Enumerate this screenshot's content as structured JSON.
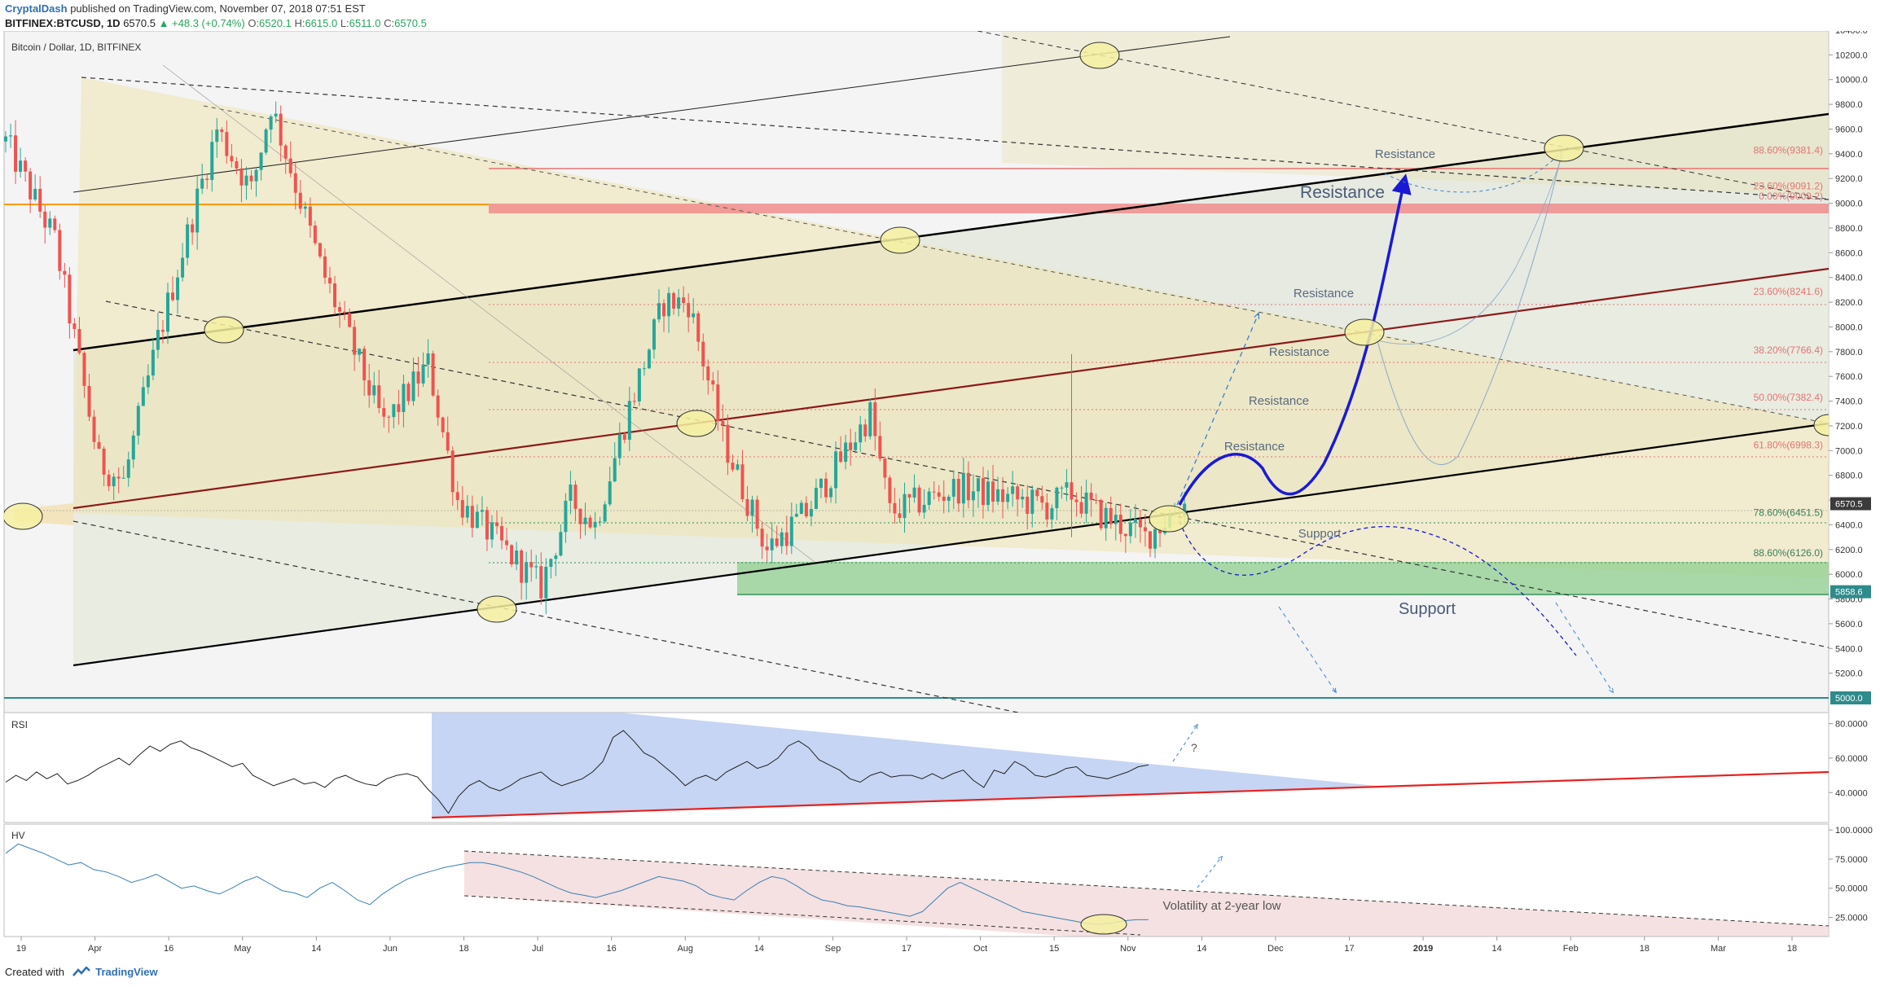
{
  "header": {
    "author": "CryptalDash",
    "published_text": "published on TradingView.com, November 07, 2018 07:51 EST",
    "symbol": "BITFINEX:BTCUSD, 1D",
    "price": "6570.5",
    "change": "▲ +48.3 (+0.74%)",
    "o_label": "O:",
    "o_val": "6520.1",
    "h_label": "H:",
    "h_val": "6615.0",
    "l_label": "L:",
    "l_val": "6511.0",
    "c_label": "C:",
    "c_val": "6570.5"
  },
  "footer": {
    "created_with": "Created with",
    "brand": "TradingView"
  },
  "colors": {
    "up": "#26a69a",
    "down": "#ef5350",
    "fib_line": "#e57373",
    "support_zone": "#8fcf8f",
    "resistance_zone": "#f08080",
    "projection": "#1a1ad4",
    "rsi_fill": "#b8cbf0",
    "hv_fill": "#f2d9d9"
  },
  "chart_data": [
    {
      "type": "candlestick",
      "title": "Bitcoin / Dollar, 1D, BITFINEX",
      "y_range": [
        5000,
        10400
      ],
      "y_ticks": [
        5200,
        5400,
        5600,
        5800,
        6000,
        6200,
        6400,
        6600,
        6800,
        7000,
        7200,
        7400,
        7600,
        7800,
        8000,
        8200,
        8400,
        8600,
        8800,
        9000,
        9200,
        9400,
        9600,
        9800,
        10000,
        10200,
        10400
      ],
      "price_tags": [
        {
          "label": "6570.5",
          "value": 6570.5,
          "style": "dark"
        },
        {
          "label": "5858.6",
          "value": 5858.6,
          "style": "teal"
        },
        {
          "label": "5000.0",
          "value": 5000.0,
          "style": "teal"
        }
      ],
      "x_axis_labels": [
        "19",
        "Apr",
        "16",
        "May",
        "14",
        "Jun",
        "18",
        "Jul",
        "16",
        "Aug",
        "14",
        "Sep",
        "17",
        "Oct",
        "15",
        "Nov",
        "14",
        "Dec",
        "17",
        "2019",
        "14",
        "Feb",
        "18",
        "Mar",
        "18"
      ],
      "series_anchors": [
        {
          "date": "2018-03-12",
          "close": 9500
        },
        {
          "date": "2018-03-22",
          "close": 8700
        },
        {
          "date": "2018-03-31",
          "close": 6900
        },
        {
          "date": "2018-04-05",
          "close": 6750
        },
        {
          "date": "2018-04-12",
          "close": 7900
        },
        {
          "date": "2018-04-24",
          "close": 9600
        },
        {
          "date": "2018-05-01",
          "close": 9100
        },
        {
          "date": "2018-05-05",
          "close": 9800
        },
        {
          "date": "2018-05-15",
          "close": 8500
        },
        {
          "date": "2018-05-28",
          "close": 7200
        },
        {
          "date": "2018-06-06",
          "close": 7700
        },
        {
          "date": "2018-06-12",
          "close": 6600
        },
        {
          "date": "2018-06-24",
          "close": 6100
        },
        {
          "date": "2018-06-29",
          "close": 5900
        },
        {
          "date": "2018-07-05",
          "close": 6600
        },
        {
          "date": "2018-07-10",
          "close": 6400
        },
        {
          "date": "2018-07-17",
          "close": 7350
        },
        {
          "date": "2018-07-24",
          "close": 8200
        },
        {
          "date": "2018-07-29",
          "close": 8200
        },
        {
          "date": "2018-08-05",
          "close": 7100
        },
        {
          "date": "2018-08-14",
          "close": 6200
        },
        {
          "date": "2018-08-22",
          "close": 6500
        },
        {
          "date": "2018-09-04",
          "close": 7300
        },
        {
          "date": "2018-09-08",
          "close": 6500
        },
        {
          "date": "2018-09-22",
          "close": 6700
        },
        {
          "date": "2018-10-10",
          "close": 6550
        },
        {
          "date": "2018-10-15",
          "close": 6650
        },
        {
          "date": "2018-10-20",
          "close": 6500
        },
        {
          "date": "2018-10-30",
          "close": 6300
        },
        {
          "date": "2018-11-07",
          "close": 6570.5
        }
      ],
      "fib_levels": [
        {
          "label": "0.00%(9009.2)",
          "value": 9009.2
        },
        {
          "label": "23.60%(9091.2)",
          "value": 9091.2
        },
        {
          "label": "88.60%(9381.4)",
          "value": 9381.4
        },
        {
          "label": "23.60%(8241.6)",
          "value": 8241.6
        },
        {
          "label": "38.20%(7766.4)",
          "value": 7766.4
        },
        {
          "label": "50.00%(7382.4)",
          "value": 7382.4
        },
        {
          "label": "61.80%(6998.3)",
          "value": 6998.3
        },
        {
          "label": "78.60%(6451.5)",
          "value": 6451.5
        },
        {
          "label": "88.60%(6126.0)",
          "value": 6126.0
        }
      ],
      "annotations": [
        "Resistance",
        "Resistance",
        "Resistance",
        "Resistance",
        "Resistance",
        "Resistance",
        "Support",
        "Support"
      ]
    },
    {
      "type": "line",
      "title": "RSI",
      "y_range": [
        25,
        85
      ],
      "y_ticks": [
        40,
        60,
        80
      ],
      "y_tick_labels": [
        "40.0000",
        "60.0000",
        "80.0000"
      ],
      "series": [
        {
          "values": [
            46,
            50,
            47,
            52,
            48,
            51,
            45,
            47,
            50,
            54,
            57,
            60,
            56,
            62,
            67,
            64,
            68,
            70,
            66,
            64,
            61,
            58,
            55,
            57,
            50,
            47,
            44,
            46,
            48,
            45,
            46,
            43,
            48,
            50,
            47,
            45,
            44,
            48,
            50,
            51,
            49,
            42,
            36,
            28,
            38,
            44,
            47,
            43,
            41,
            44,
            48,
            50,
            52,
            47,
            44,
            46,
            48,
            52,
            58,
            72,
            76,
            70,
            63,
            60,
            55,
            50,
            44,
            48,
            50,
            47,
            52,
            55,
            58,
            54,
            56,
            60,
            67,
            70,
            66,
            59,
            56,
            53,
            48,
            46,
            50,
            52,
            49,
            50,
            50,
            48,
            51,
            48,
            51,
            53,
            47,
            43,
            53,
            51,
            58,
            55,
            50,
            49,
            51,
            54,
            55,
            50,
            49,
            48,
            50,
            52,
            55,
            56
          ]
        }
      ],
      "annotations": [
        "?"
      ]
    },
    {
      "type": "line",
      "title": "HV",
      "y_range": [
        10,
        105
      ],
      "y_ticks": [
        25,
        50,
        75,
        100
      ],
      "y_tick_labels": [
        "25.0000",
        "50.0000",
        "75.0000",
        "100.0000"
      ],
      "series": [
        {
          "values": [
            80,
            88,
            84,
            80,
            75,
            70,
            72,
            66,
            64,
            60,
            55,
            58,
            62,
            56,
            50,
            52,
            48,
            45,
            50,
            56,
            60,
            54,
            48,
            46,
            42,
            50,
            55,
            48,
            40,
            36,
            45,
            52,
            58,
            62,
            65,
            68,
            70,
            72,
            72,
            70,
            67,
            64,
            60,
            55,
            50,
            46,
            44,
            42,
            45,
            48,
            52,
            56,
            60,
            58,
            56,
            52,
            45,
            42,
            40,
            48,
            55,
            60,
            58,
            52,
            45,
            40,
            38,
            35,
            34,
            32,
            30,
            28,
            26,
            30,
            40,
            50,
            55,
            50,
            45,
            40,
            35,
            30,
            28,
            26,
            24,
            22,
            20,
            19,
            20,
            22,
            23,
            23
          ]
        }
      ],
      "annotations": [
        "Volatility at 2-year low"
      ]
    }
  ]
}
